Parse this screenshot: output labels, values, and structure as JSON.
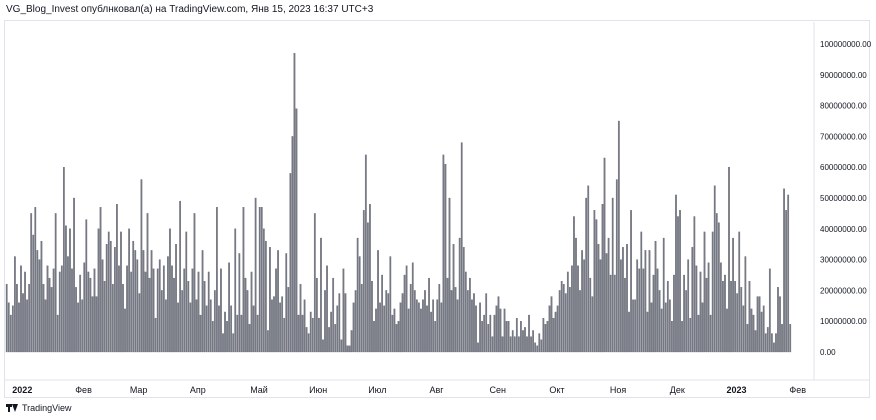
{
  "header": {
    "text": "VG_Blog_Invest опублнковал(а) на TradingView.com, Янв 15, 2023 16:37 UTC+3"
  },
  "footer": {
    "brand": "TradingView",
    "logo_icon": "tradingview-logo-icon"
  },
  "colors": {
    "bar": "#787b86",
    "bar_stroke": "#5d606b",
    "axis": "#e0e3eb",
    "text": "#131722"
  },
  "chart_data": {
    "type": "bar",
    "ylim": [
      0,
      108000000
    ],
    "y_ticks": [
      {
        "value": 100000000,
        "label": "100000000.00"
      },
      {
        "value": 90000000,
        "label": "90000000.00"
      },
      {
        "value": 80000000,
        "label": "80000000.00"
      },
      {
        "value": 70000000,
        "label": "70000000.00"
      },
      {
        "value": 60000000,
        "label": "60000000.00"
      },
      {
        "value": 50000000,
        "label": "50000000.00"
      },
      {
        "value": 40000000,
        "label": "40000000.00"
      },
      {
        "value": 30000000,
        "label": "30000000.00"
      },
      {
        "value": 20000000,
        "label": "20000000.00"
      },
      {
        "value": 10000000,
        "label": "10000000.00"
      },
      {
        "value": 0,
        "label": "0.00"
      }
    ],
    "x_labels": [
      {
        "label": "2022",
        "bold": true,
        "index": 8
      },
      {
        "label": "Фев",
        "bold": false,
        "index": 38
      },
      {
        "label": "Мар",
        "bold": false,
        "index": 65
      },
      {
        "label": "Апр",
        "bold": false,
        "index": 94
      },
      {
        "label": "Май",
        "bold": false,
        "index": 124
      },
      {
        "label": "Июн",
        "bold": false,
        "index": 153
      },
      {
        "label": "Июл",
        "bold": false,
        "index": 182
      },
      {
        "label": "Авг",
        "bold": false,
        "index": 211
      },
      {
        "label": "Сен",
        "bold": false,
        "index": 241
      },
      {
        "label": "Окт",
        "bold": false,
        "index": 270
      },
      {
        "label": "Ноя",
        "bold": false,
        "index": 300
      },
      {
        "label": "Дек",
        "bold": false,
        "index": 329
      },
      {
        "label": "2023",
        "bold": true,
        "index": 358
      },
      {
        "label": "Фев",
        "bold": false,
        "index": 388
      }
    ],
    "total_slots": 396,
    "values": [
      22000000,
      16000000,
      12000000,
      15000000,
      31000000,
      22000000,
      16000000,
      28000000,
      19000000,
      26000000,
      17000000,
      22000000,
      45000000,
      38000000,
      47000000,
      33000000,
      30000000,
      36000000,
      22000000,
      17000000,
      28000000,
      24000000,
      21000000,
      27000000,
      45000000,
      12000000,
      26000000,
      28000000,
      60000000,
      41000000,
      31000000,
      40000000,
      27000000,
      50000000,
      21000000,
      16000000,
      25000000,
      17000000,
      29000000,
      43000000,
      26000000,
      24000000,
      18000000,
      27000000,
      18000000,
      40000000,
      47000000,
      30000000,
      23000000,
      35000000,
      39000000,
      36000000,
      22000000,
      34000000,
      48000000,
      28000000,
      39000000,
      22000000,
      14000000,
      28000000,
      40000000,
      26000000,
      36000000,
      33000000,
      30000000,
      19000000,
      56000000,
      33000000,
      26000000,
      45000000,
      24000000,
      33000000,
      27000000,
      11000000,
      27000000,
      30000000,
      20000000,
      28000000,
      17000000,
      31000000,
      40000000,
      28000000,
      24000000,
      35000000,
      16000000,
      49000000,
      20000000,
      27000000,
      39000000,
      23000000,
      16000000,
      27000000,
      45000000,
      17000000,
      26000000,
      12000000,
      33000000,
      23000000,
      15000000,
      26000000,
      17000000,
      10000000,
      20000000,
      47000000,
      15000000,
      27000000,
      6000000,
      13000000,
      10000000,
      29000000,
      15000000,
      6000000,
      40000000,
      12000000,
      32000000,
      12000000,
      47000000,
      24000000,
      20000000,
      9000000,
      26000000,
      15000000,
      50000000,
      12000000,
      47000000,
      47000000,
      40000000,
      36000000,
      7000000,
      34000000,
      17000000,
      18000000,
      27000000,
      33000000,
      16000000,
      18000000,
      11000000,
      32000000,
      21000000,
      58000000,
      70000000,
      97000000,
      79000000,
      12000000,
      22000000,
      12000000,
      17000000,
      8000000,
      6000000,
      13000000,
      11000000,
      45000000,
      24000000,
      11000000,
      37000000,
      4000000,
      20000000,
      28000000,
      8000000,
      13000000,
      24000000,
      9000000,
      15000000,
      19000000,
      4000000,
      27000000,
      19000000,
      2000000,
      2000000,
      7000000,
      16000000,
      20000000,
      37000000,
      31000000,
      22000000,
      46000000,
      64000000,
      42000000,
      48000000,
      23000000,
      10000000,
      14000000,
      33000000,
      16000000,
      25000000,
      15000000,
      20000000,
      19000000,
      31000000,
      12000000,
      14000000,
      9000000,
      10000000,
      16000000,
      19000000,
      25000000,
      28000000,
      14000000,
      22000000,
      29000000,
      20000000,
      17000000,
      16000000,
      14000000,
      17000000,
      20000000,
      15000000,
      24000000,
      13000000,
      17000000,
      10000000,
      17000000,
      22000000,
      16000000,
      64000000,
      61000000,
      24000000,
      50000000,
      20000000,
      35000000,
      21000000,
      17000000,
      37000000,
      68000000,
      34000000,
      26000000,
      20000000,
      24000000,
      17000000,
      19000000,
      15000000,
      3000000,
      16000000,
      10000000,
      12000000,
      19000000,
      9000000,
      12000000,
      5000000,
      12000000,
      15000000,
      18000000,
      14000000,
      5000000,
      14000000,
      10000000,
      10000000,
      5000000,
      7000000,
      5000000,
      11000000,
      5000000,
      10000000,
      7000000,
      8000000,
      5000000,
      12000000,
      5000000,
      7000000,
      3000000,
      2000000,
      6000000,
      4000000,
      11000000,
      9000000,
      10000000,
      15000000,
      18000000,
      11000000,
      13000000,
      15000000,
      20000000,
      23000000,
      22000000,
      19000000,
      26000000,
      21000000,
      28000000,
      44000000,
      37000000,
      28000000,
      20000000,
      33000000,
      30000000,
      50000000,
      54000000,
      24000000,
      18000000,
      46000000,
      43000000,
      35000000,
      30000000,
      48000000,
      63000000,
      32000000,
      37000000,
      25000000,
      50000000,
      25000000,
      56000000,
      75000000,
      30000000,
      34000000,
      24000000,
      35000000,
      13000000,
      46000000,
      17000000,
      17000000,
      30000000,
      27000000,
      39000000,
      27000000,
      33000000,
      13000000,
      33000000,
      16000000,
      25000000,
      36000000,
      27000000,
      20000000,
      14000000,
      37000000,
      16000000,
      23000000,
      17000000,
      10000000,
      25000000,
      51000000,
      44000000,
      46000000,
      10000000,
      25000000,
      20000000,
      30000000,
      11000000,
      34000000,
      44000000,
      28000000,
      12000000,
      26000000,
      16000000,
      39000000,
      24000000,
      29000000,
      12000000,
      39000000,
      54000000,
      45000000,
      42000000,
      29000000,
      23000000,
      25000000,
      14000000,
      60000000,
      23000000,
      37000000,
      23000000,
      19000000,
      39000000,
      21000000,
      15000000,
      31000000,
      9000000,
      23000000,
      14000000,
      12000000,
      7000000,
      18000000,
      18000000,
      13000000,
      15000000,
      6000000,
      8000000,
      27000000,
      6000000,
      3000000,
      6000000,
      21000000,
      18000000,
      9000000,
      53000000,
      46000000,
      51000000,
      9000000
    ]
  }
}
